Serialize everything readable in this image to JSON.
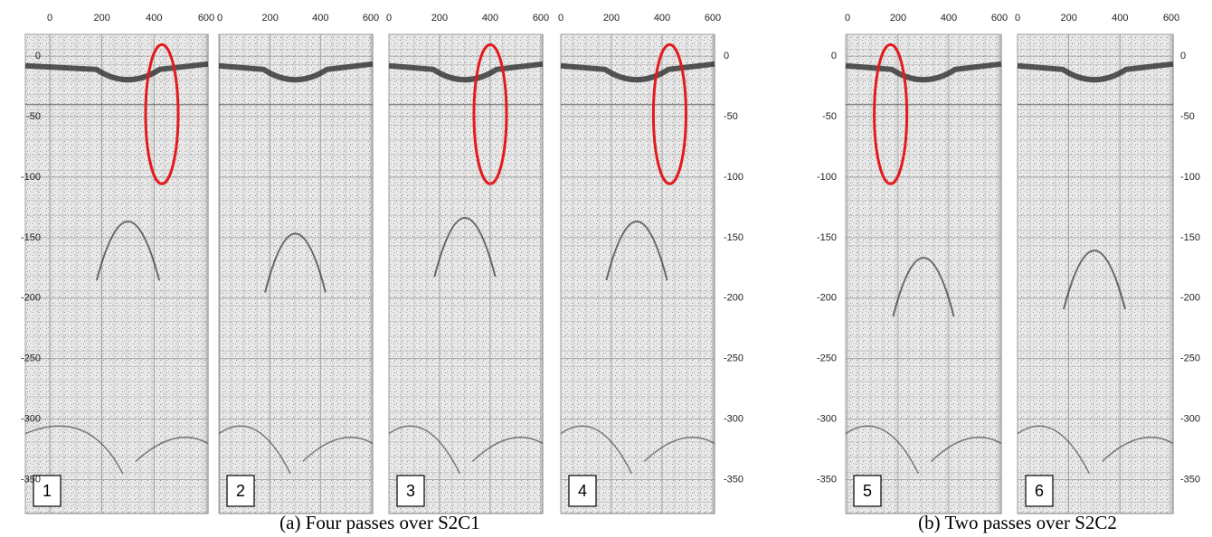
{
  "figure": {
    "xlim": [
      0,
      600
    ],
    "xticks": [
      0,
      200,
      400,
      600
    ],
    "ylim": [
      -378,
      18
    ],
    "yticks": [
      0,
      -50,
      -100,
      -150,
      -200,
      -250,
      -300,
      -350
    ],
    "groups": [
      {
        "caption": "(a) Four passes over S2C1",
        "panels": [
          "1",
          "2",
          "3",
          "4"
        ]
      },
      {
        "caption": "(b) Two passes over S2C2",
        "panels": [
          "5",
          "6"
        ]
      }
    ]
  }
}
